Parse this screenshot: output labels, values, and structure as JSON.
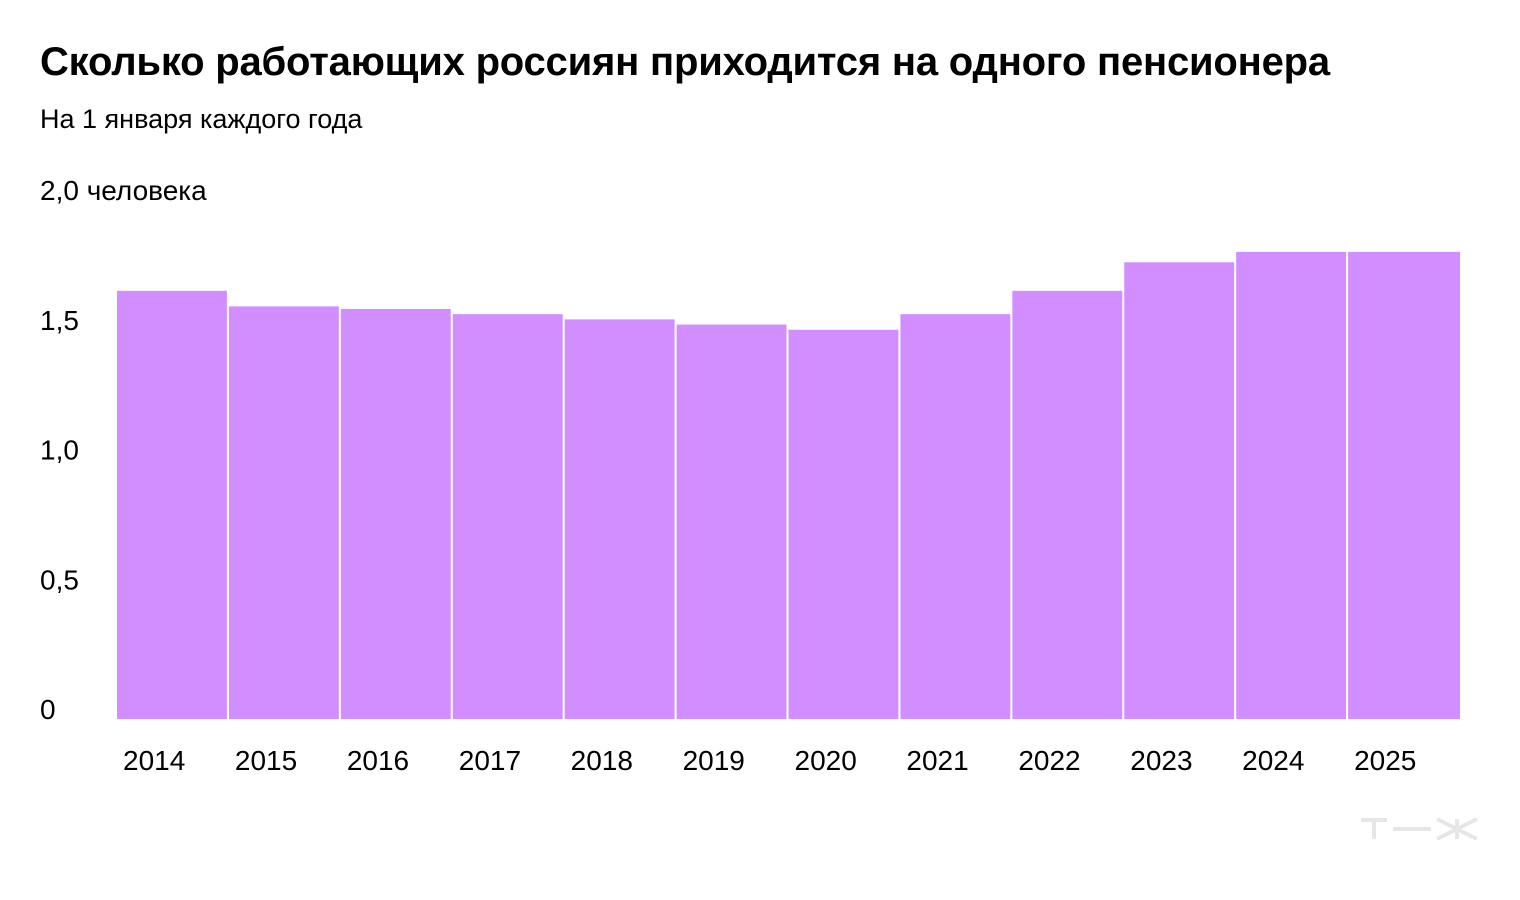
{
  "header": {
    "title": "Сколько работающих россиян приходится на одного пенсионера",
    "subtitle": "На 1 января каждого года"
  },
  "chart_data": {
    "type": "bar",
    "title": "Сколько работающих россиян приходится на одного пенсионера",
    "subtitle": "На 1 января каждого года",
    "categories": [
      "2014",
      "2015",
      "2016",
      "2017",
      "2018",
      "2019",
      "2020",
      "2021",
      "2022",
      "2023",
      "2024",
      "2025"
    ],
    "values": [
      1.65,
      1.59,
      1.58,
      1.56,
      1.54,
      1.52,
      1.5,
      1.56,
      1.65,
      1.76,
      1.8,
      1.8
    ],
    "ylim": [
      0,
      2.0
    ],
    "yticks": [
      {
        "value": 0,
        "label": "0"
      },
      {
        "value": 0.5,
        "label": "0,5"
      },
      {
        "value": 1.0,
        "label": "1,0"
      },
      {
        "value": 1.5,
        "label": "1,5"
      },
      {
        "value": 2.0,
        "label": "2,0 человека"
      }
    ],
    "bar_color": "#d28eff",
    "grid": false,
    "legend": "none"
  },
  "brand": {
    "logo_icon": "tzh-logo-icon",
    "logo_color": "#e6e6e6"
  }
}
